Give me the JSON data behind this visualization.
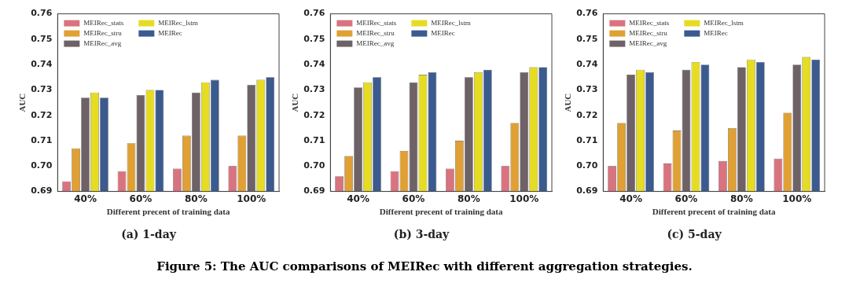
{
  "chart_data": [
    {
      "type": "bar",
      "title": "(a) 1-day",
      "xlabel": "Different precent of training data",
      "ylabel": "AUC",
      "categories": [
        "40%",
        "60%",
        "80%",
        "100%"
      ],
      "ylim": [
        0.69,
        0.76
      ],
      "yticks": [
        {
          "value": 0.69,
          "label": "0.69"
        },
        {
          "value": 0.7,
          "label": "0.70"
        },
        {
          "value": 0.71,
          "label": "0.71"
        },
        {
          "value": 0.72,
          "label": "0.72"
        },
        {
          "value": 0.73,
          "label": "0.73"
        },
        {
          "value": 0.74,
          "label": "0.74"
        },
        {
          "value": 0.75,
          "label": "0.75"
        },
        {
          "value": 0.76,
          "label": "0.76"
        }
      ],
      "legend": "top left",
      "grid": false,
      "annotations": [
        "Figure 5: The AUC comparisons of MEIRec with different aggregation strategies."
      ],
      "series": [
        {
          "name": "MEIRec_stats",
          "color": "#d9737f",
          "values": [
            0.694,
            0.698,
            0.699,
            0.7
          ]
        },
        {
          "name": "MEIRec_stru",
          "color": "#e0a034",
          "values": [
            0.707,
            0.709,
            0.712,
            0.712
          ]
        },
        {
          "name": "MEIRec_avg",
          "color": "#6e6266",
          "values": [
            0.727,
            0.728,
            0.729,
            0.732
          ]
        },
        {
          "name": "MEIRec_lstm",
          "color": "#e6dc22",
          "values": [
            0.729,
            0.73,
            0.733,
            0.734
          ]
        },
        {
          "name": "MEIRec",
          "color": "#3b5b8f",
          "values": [
            0.727,
            0.73,
            0.734,
            0.735
          ]
        }
      ]
    },
    {
      "type": "bar",
      "title": "(b) 3-day",
      "xlabel": "Different precent of training data",
      "ylabel": "AUC",
      "categories": [
        "40%",
        "60%",
        "80%",
        "100%"
      ],
      "ylim": [
        0.69,
        0.76
      ],
      "yticks": [
        {
          "value": 0.69,
          "label": "0.69"
        },
        {
          "value": 0.7,
          "label": "0.70"
        },
        {
          "value": 0.71,
          "label": "0.71"
        },
        {
          "value": 0.72,
          "label": "0.72"
        },
        {
          "value": 0.73,
          "label": "0.73"
        },
        {
          "value": 0.74,
          "label": "0.74"
        },
        {
          "value": 0.75,
          "label": "0.75"
        },
        {
          "value": 0.76,
          "label": "0.76"
        }
      ],
      "legend": "top left",
      "grid": false,
      "series": [
        {
          "name": "MEIRec_stats",
          "color": "#d9737f",
          "values": [
            0.696,
            0.698,
            0.699,
            0.7
          ]
        },
        {
          "name": "MEIRec_stru",
          "color": "#e0a034",
          "values": [
            0.704,
            0.706,
            0.71,
            0.717
          ]
        },
        {
          "name": "MEIRec_avg",
          "color": "#6e6266",
          "values": [
            0.731,
            0.733,
            0.735,
            0.737
          ]
        },
        {
          "name": "MEIRec_lstm",
          "color": "#e6dc22",
          "values": [
            0.733,
            0.736,
            0.737,
            0.739
          ]
        },
        {
          "name": "MEIRec",
          "color": "#3b5b8f",
          "values": [
            0.735,
            0.737,
            0.738,
            0.739
          ]
        }
      ]
    },
    {
      "type": "bar",
      "title": "(c) 5-day",
      "xlabel": "Different precent of training data",
      "ylabel": "AUC",
      "categories": [
        "40%",
        "60%",
        "80%",
        "100%"
      ],
      "ylim": [
        0.69,
        0.76
      ],
      "yticks": [
        {
          "value": 0.69,
          "label": "0.69"
        },
        {
          "value": 0.7,
          "label": "0.70"
        },
        {
          "value": 0.71,
          "label": "0.71"
        },
        {
          "value": 0.72,
          "label": "0.72"
        },
        {
          "value": 0.73,
          "label": "0.73"
        },
        {
          "value": 0.74,
          "label": "0.74"
        },
        {
          "value": 0.75,
          "label": "0.75"
        },
        {
          "value": 0.76,
          "label": "0.76"
        }
      ],
      "legend": "top left",
      "grid": false,
      "series": [
        {
          "name": "MEIRec_stats",
          "color": "#d9737f",
          "values": [
            0.7,
            0.701,
            0.702,
            0.703
          ]
        },
        {
          "name": "MEIRec_stru",
          "color": "#e0a034",
          "values": [
            0.717,
            0.714,
            0.715,
            0.721
          ]
        },
        {
          "name": "MEIRec_avg",
          "color": "#6e6266",
          "values": [
            0.736,
            0.738,
            0.739,
            0.74
          ]
        },
        {
          "name": "MEIRec_lstm",
          "color": "#e6dc22",
          "values": [
            0.738,
            0.741,
            0.742,
            0.743
          ]
        },
        {
          "name": "MEIRec",
          "color": "#3b5b8f",
          "values": [
            0.737,
            0.74,
            0.741,
            0.742
          ]
        }
      ]
    }
  ]
}
